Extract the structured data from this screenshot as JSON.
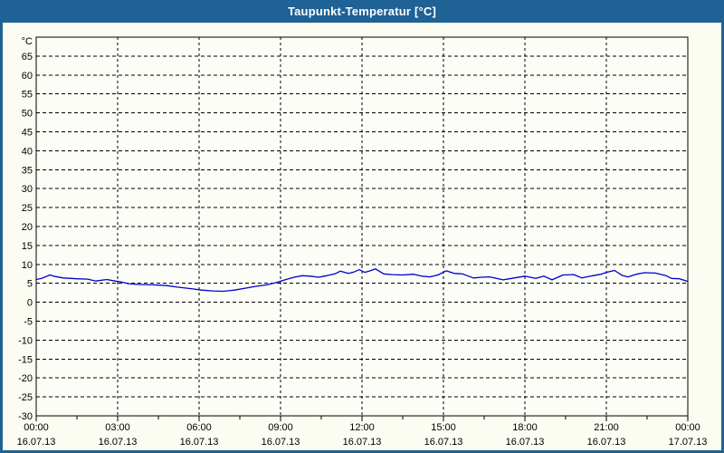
{
  "window": {
    "title": "Taupunkt-Temperatur [°C]"
  },
  "colors": {
    "titlebar": "#1e6296",
    "border": "#1e6296",
    "title_text": "#ffffff",
    "background": "#fbfcf2",
    "plot_bg": "#fdfdf8",
    "grid": "#000000",
    "axis": "#000000",
    "tick_text": "#000000",
    "line": "#0000cc"
  },
  "chart_data": {
    "type": "line",
    "title": "Taupunkt-Temperatur [°C]",
    "y_unit_label": "°C",
    "ylim": [
      -30,
      70
    ],
    "ytick_values": [
      65,
      60,
      55,
      50,
      45,
      40,
      35,
      30,
      25,
      20,
      15,
      10,
      5,
      0,
      -5,
      -10,
      -15,
      -20,
      -25,
      -30
    ],
    "x_range_hours": [
      0,
      24
    ],
    "x_major_ticks": [
      {
        "hour": 0,
        "time": "00:00",
        "date": "16.07.13"
      },
      {
        "hour": 3,
        "time": "03:00",
        "date": "16.07.13"
      },
      {
        "hour": 6,
        "time": "06:00",
        "date": "16.07.13"
      },
      {
        "hour": 9,
        "time": "09:00",
        "date": "16.07.13"
      },
      {
        "hour": 12,
        "time": "12:00",
        "date": "16.07.13"
      },
      {
        "hour": 15,
        "time": "15:00",
        "date": "16.07.13"
      },
      {
        "hour": 18,
        "time": "18:00",
        "date": "16.07.13"
      },
      {
        "hour": 21,
        "time": "21:00",
        "date": "16.07.13"
      },
      {
        "hour": 24,
        "time": "00:00",
        "date": "17.07.13"
      }
    ],
    "x_minor_tick_interval_hours": 1.5,
    "grid": "dashed",
    "legend": "none",
    "series": [
      {
        "name": "Taupunkt-Temperatur",
        "color": "#0000cc",
        "points": [
          [
            0,
            6.0
          ],
          [
            0.2,
            6.3
          ],
          [
            0.5,
            7.2
          ],
          [
            0.7,
            6.8
          ],
          [
            1.0,
            6.4
          ],
          [
            1.5,
            6.2
          ],
          [
            1.9,
            6.1
          ],
          [
            2.2,
            5.6
          ],
          [
            2.6,
            6.0
          ],
          [
            2.9,
            5.6
          ],
          [
            3.1,
            5.4
          ],
          [
            3.4,
            4.9
          ],
          [
            3.8,
            4.7
          ],
          [
            4.3,
            4.6
          ],
          [
            4.8,
            4.4
          ],
          [
            5.2,
            4.0
          ],
          [
            5.7,
            3.6
          ],
          [
            6.1,
            3.2
          ],
          [
            6.5,
            3.0
          ],
          [
            6.9,
            2.9
          ],
          [
            7.3,
            3.2
          ],
          [
            7.7,
            3.7
          ],
          [
            8.1,
            4.2
          ],
          [
            8.5,
            4.6
          ],
          [
            8.9,
            5.3
          ],
          [
            9.2,
            6.0
          ],
          [
            9.5,
            6.6
          ],
          [
            9.8,
            7.0
          ],
          [
            10.1,
            6.9
          ],
          [
            10.4,
            6.6
          ],
          [
            10.7,
            7.0
          ],
          [
            11.0,
            7.5
          ],
          [
            11.2,
            8.2
          ],
          [
            11.5,
            7.6
          ],
          [
            11.7,
            8.0
          ],
          [
            11.9,
            8.6
          ],
          [
            12.1,
            7.9
          ],
          [
            12.3,
            8.3
          ],
          [
            12.5,
            8.8
          ],
          [
            12.8,
            7.5
          ],
          [
            13.1,
            7.3
          ],
          [
            13.5,
            7.2
          ],
          [
            13.9,
            7.4
          ],
          [
            14.2,
            6.9
          ],
          [
            14.5,
            6.7
          ],
          [
            14.8,
            7.2
          ],
          [
            15.1,
            8.3
          ],
          [
            15.4,
            7.6
          ],
          [
            15.7,
            7.5
          ],
          [
            16.1,
            6.4
          ],
          [
            16.4,
            6.6
          ],
          [
            16.7,
            6.7
          ],
          [
            17.2,
            5.9
          ],
          [
            17.6,
            6.4
          ],
          [
            18.0,
            6.9
          ],
          [
            18.4,
            6.3
          ],
          [
            18.7,
            6.9
          ],
          [
            19.0,
            5.9
          ],
          [
            19.4,
            7.2
          ],
          [
            19.8,
            7.3
          ],
          [
            20.1,
            6.4
          ],
          [
            20.5,
            7.0
          ],
          [
            20.8,
            7.4
          ],
          [
            21.0,
            7.9
          ],
          [
            21.3,
            8.4
          ],
          [
            21.6,
            7.0
          ],
          [
            21.8,
            6.7
          ],
          [
            22.1,
            7.4
          ],
          [
            22.4,
            7.8
          ],
          [
            22.8,
            7.7
          ],
          [
            23.2,
            7.0
          ],
          [
            23.4,
            6.3
          ],
          [
            23.7,
            6.2
          ],
          [
            24.0,
            5.5
          ]
        ]
      }
    ]
  }
}
